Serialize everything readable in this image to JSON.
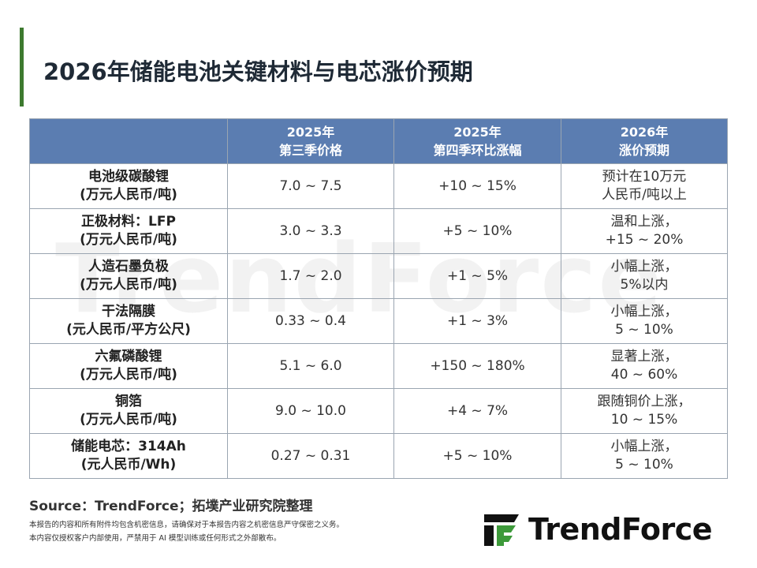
{
  "header": {
    "title": "2026年储能电池关键材料与电芯涨价预期"
  },
  "watermark": "TrendForce",
  "table": {
    "columns": [
      [
        "2025年",
        "第三季价格"
      ],
      [
        "2025年",
        "第四季环比涨幅"
      ],
      [
        "2026年",
        "涨价预期"
      ]
    ],
    "rows": [
      [
        [
          "电池级碳酸锂",
          "(万元人民币/吨)"
        ],
        [
          "7.0 ~ 7.5"
        ],
        [
          "+10 ~ 15%"
        ],
        [
          "预计在10万元",
          "人民币/吨以上"
        ]
      ],
      [
        [
          "正极材料：LFP",
          "(万元人民币/吨)"
        ],
        [
          "3.0 ~ 3.3"
        ],
        [
          "+5 ~ 10%"
        ],
        [
          "温和上涨，",
          "+15 ~ 20%"
        ]
      ],
      [
        [
          "人造石墨负极",
          "(万元人民币/吨)"
        ],
        [
          "1.7 ~ 2.0"
        ],
        [
          "+1 ~ 5%"
        ],
        [
          "小幅上涨，",
          "5%以内"
        ]
      ],
      [
        [
          "干法隔膜",
          "(元人民币/平方公尺)"
        ],
        [
          "0.33 ~ 0.4"
        ],
        [
          "+1 ~ 3%"
        ],
        [
          "小幅上涨，",
          "5 ~ 10%"
        ]
      ],
      [
        [
          "六氟磷酸锂",
          "(万元人民币/吨)"
        ],
        [
          "5.1 ~ 6.0"
        ],
        [
          "+150 ~ 180%"
        ],
        [
          "显著上涨，",
          "40 ~ 60%"
        ]
      ],
      [
        [
          "铜箔",
          "(万元人民币/吨)"
        ],
        [
          "9.0 ~ 10.0"
        ],
        [
          "+4 ~ 7%"
        ],
        [
          "跟随铜价上涨，",
          "10 ~ 15%"
        ]
      ],
      [
        [
          "储能电芯：314Ah",
          "(元人民币/Wh)"
        ],
        [
          "0.27 ~ 0.31"
        ],
        [
          "+5 ~ 10%"
        ],
        [
          "小幅上涨，",
          "5 ~ 10%"
        ]
      ]
    ]
  },
  "footer": {
    "source": "Source：TrendForce；拓墣产业研究院整理",
    "disclaimer": [
      "本报告的内容和所有附件均包含机密信息，请确保对于本报告内容之机密信息严守保密之义务。",
      "本内容仅授权客户内部使用，严禁用于 AI 模型训练或任何形式之外部散布。"
    ],
    "logo": "TrendForce"
  }
}
